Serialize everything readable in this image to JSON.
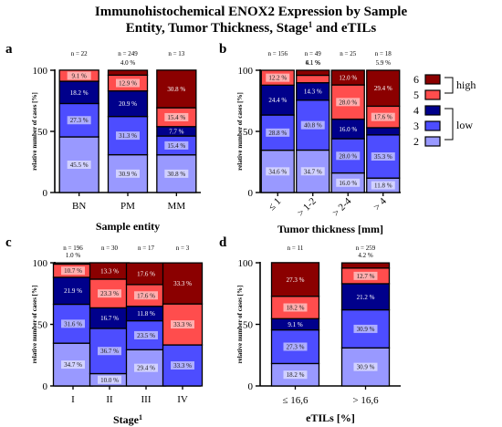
{
  "figure": {
    "title_lines": [
      "Immunohistochemical ENOX2 Expression by Sample",
      "Entity, Tumor Thickness, Stage",
      "1",
      " and eTILs"
    ]
  },
  "legend": {
    "items": [
      {
        "label": "6",
        "color": "#8b0000"
      },
      {
        "label": "5",
        "color": "#ff4d4d"
      },
      {
        "label": "4",
        "color": "#00008b"
      },
      {
        "label": "3",
        "color": "#4d4dff"
      },
      {
        "label": "2",
        "color": "#9999ff"
      }
    ],
    "groups": [
      {
        "label": "high",
        "covers": [
          "6",
          "5"
        ]
      },
      {
        "label": "low",
        "covers": [
          "4",
          "3",
          "2"
        ]
      }
    ]
  },
  "chart_data": [
    {
      "type": "bar",
      "stacked": true,
      "panel_label": "a",
      "xlabel": "Sample entity",
      "ylabel": "relative number of cases [%]",
      "ylim": [
        0,
        100
      ],
      "yticks": [
        0,
        50,
        100
      ],
      "categories": [
        "BN",
        "PM",
        "MM"
      ],
      "n_labels": [
        "n = 22",
        "n = 249",
        "n = 13"
      ],
      "series": [
        {
          "name": "2",
          "values": [
            45.5,
            30.9,
            30.8
          ]
        },
        {
          "name": "3",
          "values": [
            27.3,
            31.3,
            15.4
          ]
        },
        {
          "name": "4",
          "values": [
            18.2,
            20.9,
            7.7
          ]
        },
        {
          "name": "5",
          "values": [
            9.1,
            12.9,
            15.4
          ]
        },
        {
          "name": "6",
          "values": [
            0,
            4.0,
            30.8
          ]
        }
      ],
      "data_labels": [
        [
          "45.5 %",
          "30.9 %",
          "30.8 %"
        ],
        [
          "27.3 %",
          "31.3 %",
          "15.4 %"
        ],
        [
          "18.2 %",
          "20.9 %",
          "7.7 %"
        ],
        [
          "9.1 %",
          "12.9 %",
          "15.4 %"
        ],
        [
          "",
          "4.0 %",
          "30.8 %"
        ]
      ]
    },
    {
      "type": "bar",
      "stacked": true,
      "panel_label": "b",
      "xlabel": "Tumor thickness [mm]",
      "ylabel": "relative number of cases [%]",
      "ylim": [
        0,
        100
      ],
      "yticks": [
        0,
        50,
        100
      ],
      "categories": [
        "≤ 1",
        "> 1-2",
        "> 2-4",
        "> 4"
      ],
      "n_labels": [
        "n = 156",
        "n = 49",
        "n = 25",
        "n = 18"
      ],
      "series": [
        {
          "name": "2",
          "values": [
            34.6,
            34.7,
            16.0,
            11.8
          ]
        },
        {
          "name": "3",
          "values": [
            28.8,
            40.8,
            28.0,
            35.3
          ]
        },
        {
          "name": "4",
          "values": [
            24.4,
            14.3,
            16.0,
            5.9
          ]
        },
        {
          "name": "5",
          "values": [
            12.2,
            6.1,
            28.0,
            17.6
          ]
        },
        {
          "name": "6",
          "values": [
            0,
            4.1,
            12.0,
            29.4
          ]
        }
      ],
      "data_labels": [
        [
          "34.6 %",
          "34.7 %",
          "16.0 %",
          "11.8 %"
        ],
        [
          "28.8 %",
          "40.8 %",
          "28.0 %",
          "35.3 %"
        ],
        [
          "24.4 %",
          "14.3 %",
          "16.0 %",
          "5.9 %"
        ],
        [
          "12.2 %",
          "6.1 %",
          "28.0 %",
          "17.6 %"
        ],
        [
          "",
          "4.1 %",
          "12.0 %",
          "29.4 %"
        ]
      ]
    },
    {
      "type": "bar",
      "stacked": true,
      "panel_label": "c",
      "xlabel": "Stage",
      "xlabel_sup": "1",
      "ylabel": "relative number of cases [%]",
      "ylim": [
        0,
        100
      ],
      "yticks": [
        0,
        50,
        100
      ],
      "categories": [
        "I",
        "II",
        "III",
        "IV"
      ],
      "n_labels": [
        "n = 196",
        "n = 30",
        "n = 17",
        "n = 3"
      ],
      "series": [
        {
          "name": "2",
          "values": [
            34.7,
            10.0,
            29.4,
            0
          ]
        },
        {
          "name": "3",
          "values": [
            31.6,
            36.7,
            23.5,
            33.3
          ]
        },
        {
          "name": "4",
          "values": [
            21.9,
            16.7,
            11.8,
            0
          ]
        },
        {
          "name": "5",
          "values": [
            10.7,
            23.3,
            17.6,
            33.3
          ]
        },
        {
          "name": "6",
          "values": [
            1.0,
            13.3,
            17.6,
            33.3
          ]
        }
      ],
      "data_labels": [
        [
          "34.7 %",
          "10.0 %",
          "29.4 %",
          ""
        ],
        [
          "31.6 %",
          "36.7 %",
          "23.5 %",
          "33.3 %"
        ],
        [
          "21.9 %",
          "16.7 %",
          "11.8 %",
          ""
        ],
        [
          "10.7 %",
          "23.3 %",
          "17.6 %",
          "33.3 %"
        ],
        [
          "1.0 %",
          "13.3 %",
          "17.6 %",
          "33.3 %"
        ]
      ]
    },
    {
      "type": "bar",
      "stacked": true,
      "panel_label": "d",
      "xlabel": "eTILs [%]",
      "ylabel": "relative number of cases [%]",
      "ylim": [
        0,
        100
      ],
      "yticks": [
        0,
        50,
        100
      ],
      "categories": [
        "≤ 16,6",
        "> 16,6"
      ],
      "n_labels": [
        "n = 11",
        "n = 259"
      ],
      "series": [
        {
          "name": "2",
          "values": [
            18.2,
            30.9
          ]
        },
        {
          "name": "3",
          "values": [
            27.3,
            30.9
          ]
        },
        {
          "name": "4",
          "values": [
            9.1,
            21.2
          ]
        },
        {
          "name": "5",
          "values": [
            18.2,
            12.7
          ]
        },
        {
          "name": "6",
          "values": [
            27.3,
            4.2
          ]
        }
      ],
      "data_labels": [
        [
          "18.2 %",
          "30.9 %"
        ],
        [
          "27.3 %",
          "30.9 %"
        ],
        [
          "9.1 %",
          "21.2 %"
        ],
        [
          "18.2 %",
          "12.7 %"
        ],
        [
          "27.3 %",
          "4.2 %"
        ]
      ]
    }
  ]
}
